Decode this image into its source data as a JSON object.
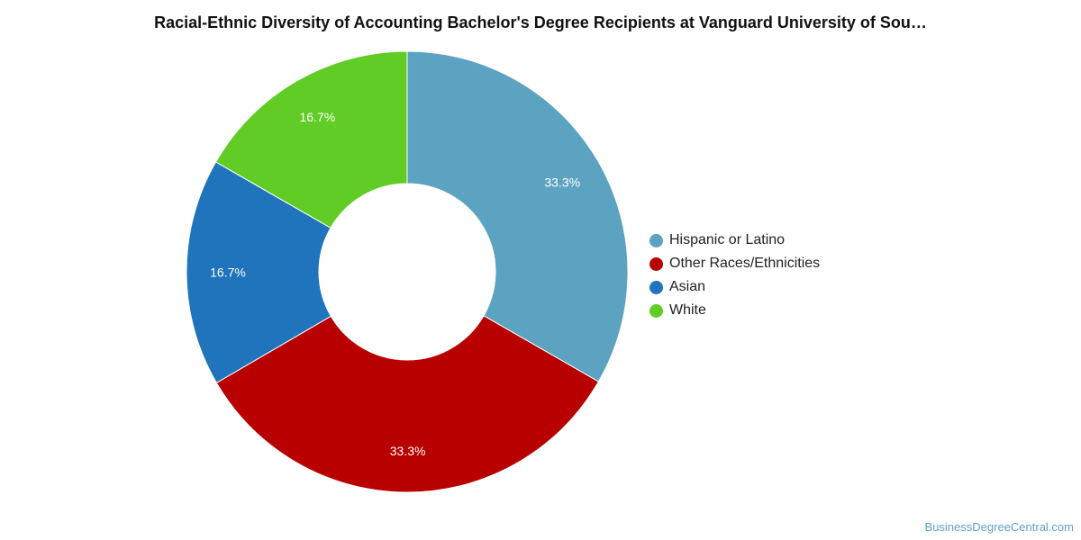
{
  "chart_data": {
    "type": "pie",
    "title": "Racial-Ethnic Diversity of Accounting Bachelor's Degree Recipients at Vanguard University of Sou…",
    "donut": true,
    "legend_position": "right",
    "slices": [
      {
        "label": "Hispanic or Latino",
        "value": 33.3,
        "display": "33.3%",
        "color": "#5ba3c0"
      },
      {
        "label": "Other Races/Ethnicities",
        "value": 33.3,
        "display": "33.3%",
        "color": "#b80000"
      },
      {
        "label": "Asian",
        "value": 16.7,
        "display": "16.7%",
        "color": "#1f74bb"
      },
      {
        "label": "White",
        "value": 16.7,
        "display": "16.7%",
        "color": "#60cc25"
      }
    ]
  },
  "footer": {
    "source": "BusinessDegreeCentral.com"
  }
}
